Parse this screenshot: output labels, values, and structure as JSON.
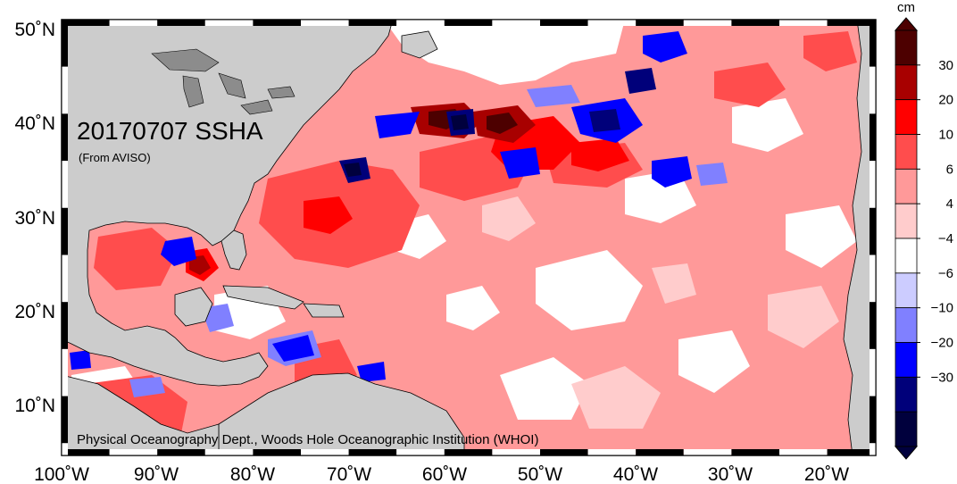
{
  "map": {
    "title": "20170707 SSHA",
    "subtitle": "(From AVISO)",
    "credit": "Physical Oceanography Dept., Woods Hole Oceanographic Institution (WHOI)",
    "lat_labels": [
      "50˚N",
      "40˚N",
      "30˚N",
      "20˚N",
      "10˚N"
    ],
    "lon_labels": [
      "100˚W",
      "90˚W",
      "80˚W",
      "70˚W",
      "60˚W",
      "50˚W",
      "40˚W",
      "30˚W",
      "20˚W"
    ],
    "land_color": "#cccccc",
    "ocean_base_color": "#ff9999"
  },
  "colorbar": {
    "unit": "cm",
    "labels": [
      "30",
      "20",
      "10",
      "6",
      "4",
      "−4",
      "−6",
      "−10",
      "−20",
      "−30"
    ],
    "colors": [
      "#4d0000",
      "#a80000",
      "#ff0000",
      "#ff4d4d",
      "#ff9999",
      "#ffcccc",
      "#ffffff",
      "#ccccff",
      "#8080ff",
      "#0000ff",
      "#00007a",
      "#00003d"
    ]
  }
}
